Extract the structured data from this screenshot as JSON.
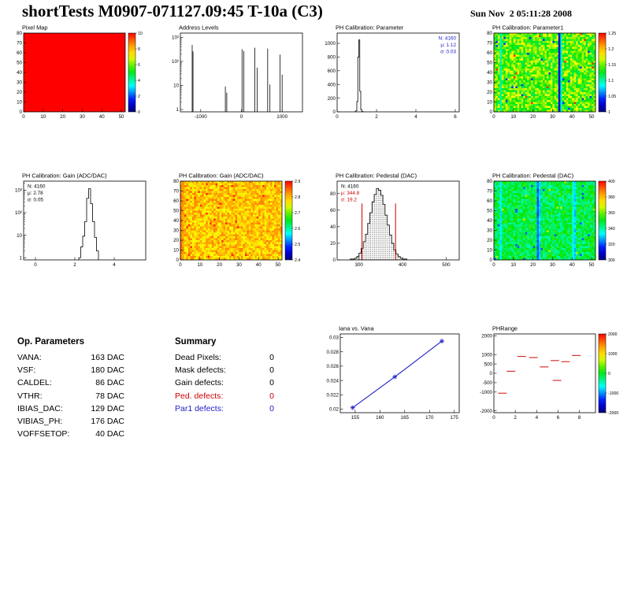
{
  "header": {
    "title": "shortTests M0907-071127.09:45 T-10a (C3)",
    "datetime": "Sun Nov  2 05:11:28 2008"
  },
  "op_parameters": {
    "heading": "Op. Parameters",
    "rows": [
      {
        "label": "VANA:",
        "value": "163 DAC"
      },
      {
        "label": "VSF:",
        "value": "180 DAC"
      },
      {
        "label": "CALDEL:",
        "value": "86 DAC"
      },
      {
        "label": "VTHR:",
        "value": "78 DAC"
      },
      {
        "label": "IBIAS_DAC:",
        "value": "129 DAC"
      },
      {
        "label": "VIBIAS_PH:",
        "value": "176 DAC"
      },
      {
        "label": "VOFFSETOP:",
        "value": "40 DAC"
      }
    ]
  },
  "summary": {
    "heading": "Summary",
    "rows": [
      {
        "label": "Dead Pixels:",
        "value": "0",
        "color": "#000000"
      },
      {
        "label": "Mask defects:",
        "value": "0",
        "color": "#000000"
      },
      {
        "label": "Gain defects:",
        "value": "0",
        "color": "#000000"
      },
      {
        "label": "Ped. defects:",
        "value": "0",
        "color": "#cc0000"
      },
      {
        "label": "Par1 defects:",
        "value": "0",
        "color": "#2020c8"
      }
    ]
  },
  "chart_data": [
    {
      "id": "pixel-map",
      "title": "Pixel Map",
      "type": "heatmap",
      "seed": 7,
      "xrange": [
        0,
        52
      ],
      "yrange": [
        0,
        80
      ],
      "xticks": [
        [
          0,
          "0"
        ],
        [
          10,
          "10"
        ],
        [
          20,
          "20"
        ],
        [
          30,
          "30"
        ],
        [
          40,
          "40"
        ],
        [
          50,
          "50"
        ]
      ],
      "yticks": [
        [
          0,
          "0"
        ],
        [
          10,
          "10"
        ],
        [
          20,
          "20"
        ],
        [
          30,
          "30"
        ],
        [
          40,
          "40"
        ],
        [
          50,
          "50"
        ],
        [
          60,
          "60"
        ],
        [
          70,
          "70"
        ],
        [
          80,
          "80"
        ]
      ],
      "map": {
        "uniform": 1.0
      },
      "colorbar": {
        "labels": [
          "10",
          "8",
          "6",
          "4",
          "2",
          "0"
        ]
      }
    },
    {
      "id": "address-levels",
      "title": "Address Levels",
      "type": "spikes",
      "logy": true,
      "xrange": [
        -1500,
        1500
      ],
      "yrange": [
        0.8,
        1500
      ],
      "xticks": [
        [
          -1000,
          "-1000"
        ],
        [
          0,
          "0"
        ],
        [
          1000,
          "1000"
        ]
      ],
      "yticks": [
        [
          1,
          "1"
        ],
        [
          10,
          "10"
        ],
        [
          100,
          "10²"
        ],
        [
          1000,
          "10³"
        ]
      ],
      "spikes": [
        [
          -1210,
          480
        ],
        [
          -1190,
          260
        ],
        [
          -395,
          9
        ],
        [
          -360,
          5
        ],
        [
          15,
          320
        ],
        [
          60,
          270
        ],
        [
          330,
          370
        ],
        [
          385,
          55
        ],
        [
          645,
          340
        ],
        [
          700,
          11
        ],
        [
          950,
          190
        ],
        [
          1000,
          28
        ]
      ]
    },
    {
      "id": "ph-calibration-parameter",
      "title": "PH Calibration: Parameter",
      "type": "hist",
      "xrange": [
        0,
        6.2
      ],
      "yrange": [
        0,
        1150
      ],
      "xticks": [
        [
          0,
          "0"
        ],
        [
          2,
          "2"
        ],
        [
          4,
          "4"
        ],
        [
          6,
          "6"
        ]
      ],
      "yticks": [
        [
          0,
          "0"
        ],
        [
          200,
          "200"
        ],
        [
          400,
          "400"
        ],
        [
          600,
          "600"
        ],
        [
          800,
          "800"
        ],
        [
          1000,
          "1000"
        ]
      ],
      "binw": 0.05,
      "bins": [
        [
          0.9,
          2
        ],
        [
          0.95,
          14
        ],
        [
          1.0,
          150
        ],
        [
          1.05,
          800
        ],
        [
          1.1,
          1050
        ],
        [
          1.15,
          300
        ],
        [
          1.2,
          34
        ],
        [
          1.25,
          6
        ],
        [
          1.3,
          1
        ]
      ],
      "stats": {
        "pos": "tr",
        "lines": [
          {
            "t": "N: 4160",
            "c": "#2020c8"
          },
          {
            "t": "μ: 1.12",
            "c": "#2020c8"
          },
          {
            "t": "σ: 0.03",
            "c": "#2020c8"
          }
        ]
      }
    },
    {
      "id": "ph-calibration-parameter1-map",
      "title": "PH Calibration: Parameter1",
      "type": "heatmap",
      "seed": 11,
      "xrange": [
        0,
        52
      ],
      "yrange": [
        0,
        80
      ],
      "xticks": [
        [
          0,
          "0"
        ],
        [
          10,
          "10"
        ],
        [
          20,
          "20"
        ],
        [
          30,
          "30"
        ],
        [
          40,
          "40"
        ],
        [
          50,
          "50"
        ]
      ],
      "yticks": [
        [
          0,
          "0"
        ],
        [
          10,
          "10"
        ],
        [
          20,
          "20"
        ],
        [
          30,
          "30"
        ],
        [
          40,
          "40"
        ],
        [
          50,
          "50"
        ],
        [
          60,
          "60"
        ],
        [
          70,
          "70"
        ],
        [
          80,
          "80"
        ]
      ],
      "map": {
        "base": 0.58,
        "noise": 0.13,
        "stripes": [
          [
            33,
            0.1
          ],
          [
            34,
            0.38
          ],
          [
            3,
            0.4
          ]
        ],
        "speckles": [
          [
            0.01,
            0.18
          ],
          [
            0.006,
            0.95
          ]
        ]
      },
      "colorbar": {
        "labels": [
          "1.25",
          "1.2",
          "1.15",
          "1.1",
          "1.05",
          "1"
        ]
      }
    },
    {
      "id": "ph-calibration-gain-hist",
      "title": "PH Calibration: Gain (ADC/DAC)",
      "type": "hist",
      "logy": true,
      "xrange": [
        -0.6,
        5.6
      ],
      "yrange": [
        0.8,
        2500
      ],
      "xticks": [
        [
          0,
          "0"
        ],
        [
          2,
          "2"
        ],
        [
          4,
          "4"
        ]
      ],
      "yticks": [
        [
          1,
          "1"
        ],
        [
          10,
          "10"
        ],
        [
          100,
          "10²"
        ],
        [
          1000,
          "10³"
        ]
      ],
      "binw": 0.1,
      "bins": [
        [
          2.2,
          1
        ],
        [
          2.3,
          3
        ],
        [
          2.4,
          9
        ],
        [
          2.5,
          40
        ],
        [
          2.6,
          430
        ],
        [
          2.7,
          1150
        ],
        [
          2.8,
          250
        ],
        [
          2.9,
          40
        ],
        [
          3.0,
          8
        ],
        [
          3.1,
          2
        ]
      ],
      "stats": {
        "pos": "tl",
        "lines": [
          {
            "t": "N: 4160",
            "c": "#000000"
          },
          {
            "t": "μ: 2.78",
            "c": "#000000"
          },
          {
            "t": "σ: 0.05",
            "c": "#000000"
          }
        ]
      }
    },
    {
      "id": "ph-calibration-gain-map",
      "title": "PH Calibration: Gain (ADC/DAC)",
      "type": "heatmap",
      "seed": 23,
      "xrange": [
        0,
        52
      ],
      "yrange": [
        0,
        80
      ],
      "xticks": [
        [
          0,
          "0"
        ],
        [
          10,
          "10"
        ],
        [
          20,
          "20"
        ],
        [
          30,
          "30"
        ],
        [
          40,
          "40"
        ],
        [
          50,
          "50"
        ]
      ],
      "yticks": [
        [
          0,
          "0"
        ],
        [
          10,
          "10"
        ],
        [
          20,
          "20"
        ],
        [
          30,
          "30"
        ],
        [
          40,
          "40"
        ],
        [
          50,
          "50"
        ],
        [
          60,
          "60"
        ],
        [
          70,
          "70"
        ],
        [
          80,
          "80"
        ]
      ],
      "map": {
        "base": 0.78,
        "noise": 0.1,
        "stripes": [
          [
            0,
            0.86
          ],
          [
            1,
            0.83
          ]
        ],
        "speckles": [
          [
            0.02,
            0.96
          ],
          [
            0.01,
            0.7
          ]
        ]
      },
      "colorbar": {
        "labels": [
          "2.9",
          "2.8",
          "2.7",
          "2.6",
          "2.5",
          "2.4"
        ]
      }
    },
    {
      "id": "ph-calibration-pedestal-hist",
      "title": "PH Calibration: Pedestal (DAC)",
      "type": "hist",
      "xrange": [
        250,
        530
      ],
      "yrange": [
        0,
        95
      ],
      "xticks": [
        [
          300,
          "300"
        ],
        [
          400,
          "400"
        ],
        [
          500,
          "500"
        ]
      ],
      "yticks": [
        [
          0,
          "0"
        ],
        [
          20,
          "20"
        ],
        [
          40,
          "40"
        ],
        [
          60,
          "60"
        ],
        [
          80,
          "80"
        ]
      ],
      "binw": 5,
      "fill": "dots",
      "bins": [
        [
          280,
          1
        ],
        [
          285,
          1
        ],
        [
          290,
          2
        ],
        [
          295,
          4
        ],
        [
          300,
          8
        ],
        [
          305,
          14
        ],
        [
          310,
          22
        ],
        [
          315,
          31
        ],
        [
          320,
          44
        ],
        [
          325,
          57
        ],
        [
          330,
          70
        ],
        [
          335,
          79
        ],
        [
          340,
          86
        ],
        [
          345,
          84
        ],
        [
          350,
          78
        ],
        [
          355,
          67
        ],
        [
          360,
          54
        ],
        [
          365,
          42
        ],
        [
          370,
          30
        ],
        [
          375,
          20
        ],
        [
          380,
          12
        ],
        [
          385,
          7
        ],
        [
          390,
          4
        ],
        [
          395,
          2
        ],
        [
          400,
          1
        ],
        [
          405,
          1
        ]
      ],
      "vlines": [
        {
          "x": 307,
          "h": 68
        },
        {
          "x": 384,
          "h": 68
        }
      ],
      "stats": {
        "pos": "tl",
        "lines": [
          {
            "t": "N: 4160",
            "c": "#000000"
          },
          {
            "t": "μ: 344.8",
            "c": "#cc0000"
          },
          {
            "t": "σ: 19.2",
            "c": "#cc0000"
          }
        ]
      }
    },
    {
      "id": "ph-calibration-pedestal-map",
      "title": "PH Calibration: Pedestal (DAC)",
      "type": "heatmap",
      "seed": 31,
      "xrange": [
        0,
        52
      ],
      "yrange": [
        0,
        80
      ],
      "xticks": [
        [
          0,
          "0"
        ],
        [
          10,
          "10"
        ],
        [
          20,
          "20"
        ],
        [
          30,
          "30"
        ],
        [
          40,
          "40"
        ],
        [
          50,
          "50"
        ]
      ],
      "yticks": [
        [
          0,
          "0"
        ],
        [
          10,
          "10"
        ],
        [
          20,
          "20"
        ],
        [
          30,
          "30"
        ],
        [
          40,
          "40"
        ],
        [
          50,
          "50"
        ],
        [
          60,
          "60"
        ],
        [
          70,
          "70"
        ],
        [
          80,
          "80"
        ]
      ],
      "map": {
        "base": 0.47,
        "noise": 0.09,
        "stripes": [
          [
            3,
            0.33
          ],
          [
            22,
            0.22
          ],
          [
            23,
            0.3
          ],
          [
            40,
            0.36
          ],
          [
            41,
            0.3
          ]
        ],
        "speckles": [
          [
            0.012,
            0.2
          ],
          [
            0.006,
            0.65
          ]
        ]
      },
      "colorbar": {
        "labels": [
          "400",
          "380",
          "360",
          "340",
          "320",
          "300"
        ]
      }
    },
    {
      "id": "iana-vs-vana",
      "title": "Iana vs. Vana",
      "type": "line",
      "ml": 34,
      "color": "#2020c8",
      "xrange": [
        152,
        176
      ],
      "yrange": [
        0.0195,
        0.0305
      ],
      "xticks": [
        [
          155,
          "155"
        ],
        [
          160,
          "160"
        ],
        [
          165,
          "165"
        ],
        [
          170,
          "170"
        ],
        [
          175,
          "175"
        ]
      ],
      "yticks": [
        [
          0.02,
          "0.02"
        ],
        [
          0.022,
          "0.022"
        ],
        [
          0.024,
          "0.024"
        ],
        [
          0.026,
          "0.026"
        ],
        [
          0.028,
          "0.028"
        ],
        [
          0.03,
          "0.03"
        ]
      ],
      "points": [
        [
          154.5,
          0.0202
        ],
        [
          163,
          0.0245
        ],
        [
          172.5,
          0.0295
        ]
      ]
    },
    {
      "id": "ph-range",
      "title": "PHRange",
      "type": "segments",
      "color": "#d22020",
      "xrange": [
        0,
        9.5
      ],
      "yrange": [
        -2100,
        2100
      ],
      "xticks": [
        [
          0,
          "0"
        ],
        [
          2,
          "2"
        ],
        [
          4,
          "4"
        ],
        [
          6,
          "6"
        ],
        [
          8,
          "8"
        ]
      ],
      "yticks": [
        [
          2000,
          "2000"
        ],
        [
          1000,
          "1000"
        ],
        [
          500,
          "500"
        ],
        [
          0,
          "0"
        ],
        [
          -500,
          "-500"
        ],
        [
          -1000,
          "-1000"
        ],
        [
          -2000,
          "-2000"
        ]
      ],
      "segments": [
        [
          2.2,
          3.0,
          900
        ],
        [
          3.3,
          4.1,
          840
        ],
        [
          5.3,
          6.1,
          680
        ],
        [
          6.3,
          7.1,
          620
        ],
        [
          7.3,
          8.1,
          950
        ],
        [
          4.3,
          5.1,
          340
        ],
        [
          1.2,
          2.0,
          110
        ],
        [
          5.5,
          6.3,
          -380
        ],
        [
          0.4,
          1.2,
          -1060
        ]
      ],
      "colorbar": {
        "labels": [
          "2000",
          "1000",
          "0",
          "-1000",
          "-2000"
        ]
      }
    }
  ]
}
